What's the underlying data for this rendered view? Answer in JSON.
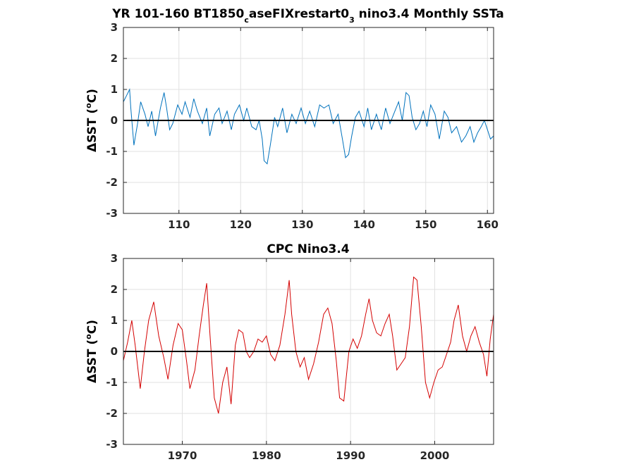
{
  "chart_data": [
    {
      "type": "line",
      "title": {
        "part1": "YR 101-160 BT1850",
        "sub1": "c",
        "part2": "aseFIXrestart0",
        "sub2": "3",
        "part3": " nino3.4 Monthly SSTa"
      },
      "ylabel": {
        "prefix": "ΔSST (",
        "sup": "o",
        "suffix": "C)"
      },
      "xlim": [
        101,
        161
      ],
      "ylim": [
        -3,
        3
      ],
      "xticks": [
        110,
        120,
        130,
        140,
        150,
        160
      ],
      "yticks": [
        -3,
        -2,
        -1,
        0,
        1,
        2,
        3
      ],
      "grid": true,
      "zero_line": true,
      "series": [
        {
          "color": "#0072BD",
          "x": [
            101.0,
            101.5,
            102.0,
            102.2,
            102.7,
            103.3,
            103.8,
            104.5,
            105.0,
            105.6,
            106.2,
            107.0,
            107.6,
            108.0,
            108.5,
            109.0,
            109.8,
            110.5,
            111.0,
            111.8,
            112.4,
            113.0,
            113.8,
            114.5,
            115.0,
            115.8,
            116.5,
            117.0,
            117.8,
            118.5,
            119.0,
            119.8,
            120.5,
            121.0,
            121.8,
            122.5,
            123.0,
            123.5,
            123.8,
            124.3,
            124.8,
            125.5,
            126.0,
            126.8,
            127.5,
            128.3,
            129.0,
            129.8,
            130.5,
            131.2,
            132.0,
            132.8,
            133.5,
            134.3,
            135.0,
            135.8,
            136.5,
            137.0,
            137.5,
            138.0,
            138.6,
            139.2,
            140.0,
            140.6,
            141.2,
            142.0,
            142.8,
            143.5,
            144.2,
            145.0,
            145.6,
            146.2,
            146.8,
            147.3,
            147.8,
            148.4,
            149.0,
            149.6,
            150.2,
            150.8,
            151.5,
            152.2,
            153.0,
            153.6,
            154.2,
            155.0,
            155.8,
            156.5,
            157.2,
            157.8,
            158.4,
            159.0,
            159.5,
            160.0,
            160.5,
            161.0
          ],
          "values": [
            0.6,
            0.8,
            1.0,
            0.4,
            -0.8,
            -0.1,
            0.6,
            0.2,
            -0.2,
            0.3,
            -0.5,
            0.4,
            0.9,
            0.4,
            -0.3,
            -0.1,
            0.5,
            0.2,
            0.6,
            0.1,
            0.7,
            0.3,
            -0.1,
            0.4,
            -0.5,
            0.2,
            0.4,
            -0.1,
            0.3,
            -0.3,
            0.2,
            0.5,
            0.0,
            0.4,
            -0.2,
            -0.3,
            0.0,
            -0.6,
            -1.3,
            -1.4,
            -0.8,
            0.1,
            -0.2,
            0.4,
            -0.4,
            0.2,
            -0.1,
            0.4,
            -0.1,
            0.3,
            -0.2,
            0.5,
            0.4,
            0.5,
            -0.1,
            0.2,
            -0.6,
            -1.2,
            -1.1,
            -0.5,
            0.1,
            0.3,
            -0.2,
            0.4,
            -0.3,
            0.2,
            -0.3,
            0.4,
            -0.1,
            0.3,
            0.6,
            0.0,
            0.9,
            0.8,
            0.1,
            -0.3,
            -0.1,
            0.3,
            -0.2,
            0.5,
            0.2,
            -0.6,
            0.3,
            0.1,
            -0.4,
            -0.2,
            -0.7,
            -0.5,
            -0.2,
            -0.7,
            -0.4,
            -0.2,
            0.0,
            -0.3,
            -0.6,
            -0.5
          ]
        }
      ]
    },
    {
      "type": "line",
      "title": {
        "text": "CPC Nino3.4"
      },
      "ylabel": {
        "prefix": "ΔSST (",
        "sup": "o",
        "suffix": "C)"
      },
      "xlim": [
        1963,
        2007
      ],
      "ylim": [
        -3,
        3
      ],
      "xticks": [
        1970,
        1980,
        1990,
        2000
      ],
      "yticks": [
        -3,
        -2,
        -1,
        0,
        1,
        2,
        3
      ],
      "grid": true,
      "zero_line": true,
      "series": [
        {
          "color": "#d40000",
          "x": [
            1963.0,
            1963.5,
            1964.0,
            1964.4,
            1965.0,
            1965.5,
            1966.0,
            1966.6,
            1967.2,
            1967.8,
            1968.3,
            1968.9,
            1969.5,
            1970.0,
            1970.5,
            1970.9,
            1971.5,
            1972.0,
            1972.5,
            1972.9,
            1973.3,
            1973.8,
            1974.3,
            1974.8,
            1975.3,
            1975.8,
            1976.3,
            1976.7,
            1977.2,
            1977.6,
            1978.0,
            1978.5,
            1979.0,
            1979.5,
            1980.0,
            1980.5,
            1981.0,
            1981.6,
            1982.2,
            1982.7,
            1983.0,
            1983.5,
            1984.0,
            1984.5,
            1985.0,
            1985.6,
            1986.2,
            1986.8,
            1987.3,
            1987.8,
            1988.3,
            1988.7,
            1989.2,
            1989.8,
            1990.3,
            1990.8,
            1991.3,
            1991.8,
            1992.2,
            1992.6,
            1993.1,
            1993.6,
            1994.1,
            1994.6,
            1995.0,
            1995.5,
            1996.0,
            1996.5,
            1997.0,
            1997.5,
            1997.9,
            1998.4,
            1998.9,
            1999.4,
            1999.9,
            2000.4,
            2000.9,
            2001.4,
            2001.9,
            2002.3,
            2002.8,
            2003.3,
            2003.8,
            2004.3,
            2004.8,
            2005.3,
            2005.8,
            2006.2,
            2006.6,
            2007.0
          ],
          "values": [
            -0.3,
            0.3,
            1.0,
            0.2,
            -1.2,
            0.0,
            1.0,
            1.6,
            0.5,
            -0.2,
            -0.9,
            0.2,
            0.9,
            0.7,
            -0.3,
            -1.2,
            -0.6,
            0.5,
            1.5,
            2.2,
            0.5,
            -1.5,
            -2.0,
            -1.0,
            -0.5,
            -1.7,
            0.2,
            0.7,
            0.6,
            0.0,
            -0.2,
            0.0,
            0.4,
            0.3,
            0.5,
            -0.1,
            -0.3,
            0.2,
            1.2,
            2.3,
            1.2,
            0.0,
            -0.5,
            -0.2,
            -0.9,
            -0.4,
            0.3,
            1.2,
            1.4,
            0.9,
            -0.3,
            -1.5,
            -1.6,
            0.0,
            0.4,
            0.1,
            0.5,
            1.2,
            1.7,
            1.0,
            0.6,
            0.5,
            0.9,
            1.2,
            0.5,
            -0.6,
            -0.4,
            -0.2,
            0.8,
            2.4,
            2.3,
            0.8,
            -1.0,
            -1.5,
            -1.0,
            -0.6,
            -0.5,
            -0.1,
            0.3,
            1.0,
            1.5,
            0.5,
            0.0,
            0.5,
            0.8,
            0.3,
            -0.1,
            -0.8,
            0.4,
            1.2
          ]
        }
      ]
    }
  ]
}
